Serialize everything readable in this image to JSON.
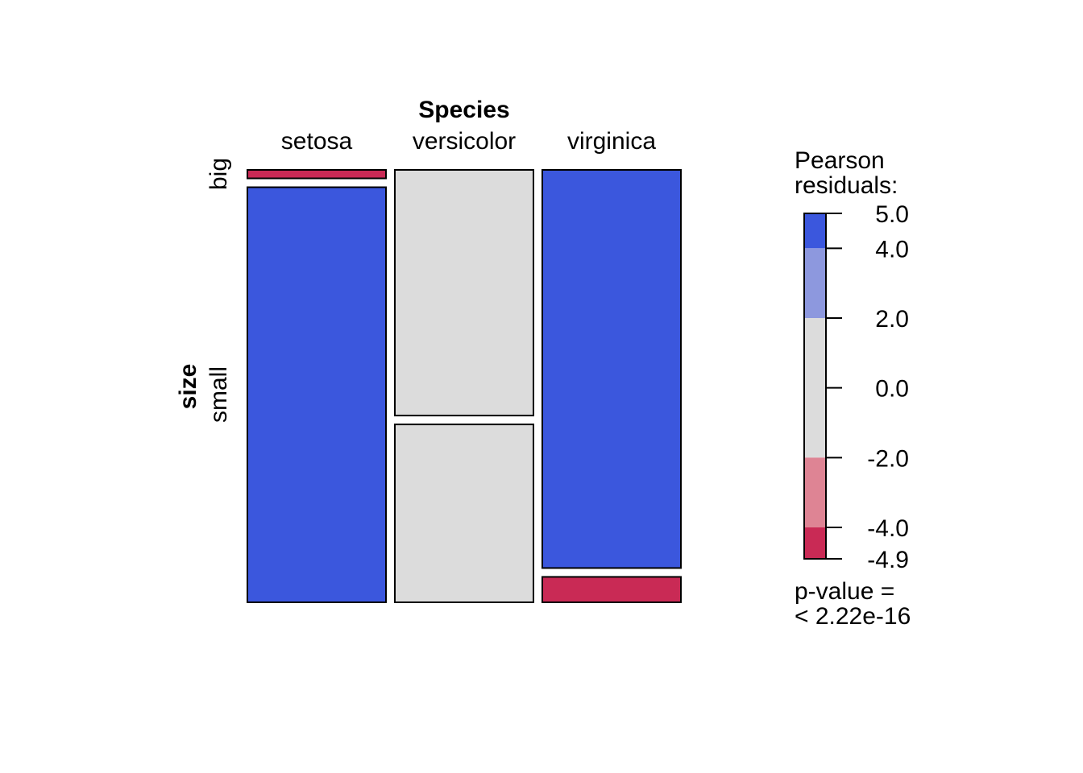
{
  "chart_data": {
    "type": "mosaic",
    "column_variable": "Species",
    "row_variable": "size",
    "columns": [
      "setosa",
      "versicolor",
      "virginica"
    ],
    "rows": [
      "big",
      "small"
    ],
    "cells": [
      {
        "column": "setosa",
        "row": "big",
        "proportion": 0.02,
        "shade": "strong_negative"
      },
      {
        "column": "setosa",
        "row": "small",
        "proportion": 0.98,
        "shade": "strong_positive"
      },
      {
        "column": "versicolor",
        "row": "big",
        "proportion": 0.58,
        "shade": "neutral"
      },
      {
        "column": "versicolor",
        "row": "small",
        "proportion": 0.42,
        "shade": "neutral"
      },
      {
        "column": "virginica",
        "row": "big",
        "proportion": 0.94,
        "shade": "strong_positive"
      },
      {
        "column": "virginica",
        "row": "small",
        "proportion": 0.06,
        "shade": "strong_negative"
      }
    ],
    "legend": {
      "title_line1": "Pearson",
      "title_line2": "residuals:",
      "range": [
        -4.9,
        5.0
      ],
      "ticks": [
        "5.0",
        "4.0",
        "2.0",
        "0.0",
        "-2.0",
        "-4.0",
        "-4.9"
      ],
      "tick_values": [
        5.0,
        4.0,
        2.0,
        0.0,
        -2.0,
        -4.0,
        -4.9
      ],
      "bands": [
        {
          "from": 4.0,
          "to": 5.0,
          "color": "#3b57dd"
        },
        {
          "from": 2.0,
          "to": 4.0,
          "color": "#8d98de"
        },
        {
          "from": -2.0,
          "to": 2.0,
          "color": "#dcdcdc"
        },
        {
          "from": -4.0,
          "to": -2.0,
          "color": "#de8494"
        },
        {
          "from": -4.9,
          "to": -4.0,
          "color": "#c92a55"
        }
      ]
    },
    "pvalue_line1": "p-value =",
    "pvalue_line2": "< 2.22e-16",
    "colors": {
      "strong_positive": "#3b57dd",
      "moderate_positive": "#8d98de",
      "neutral": "#dcdcdc",
      "moderate_negative": "#de8494",
      "strong_negative": "#c92a55"
    }
  }
}
